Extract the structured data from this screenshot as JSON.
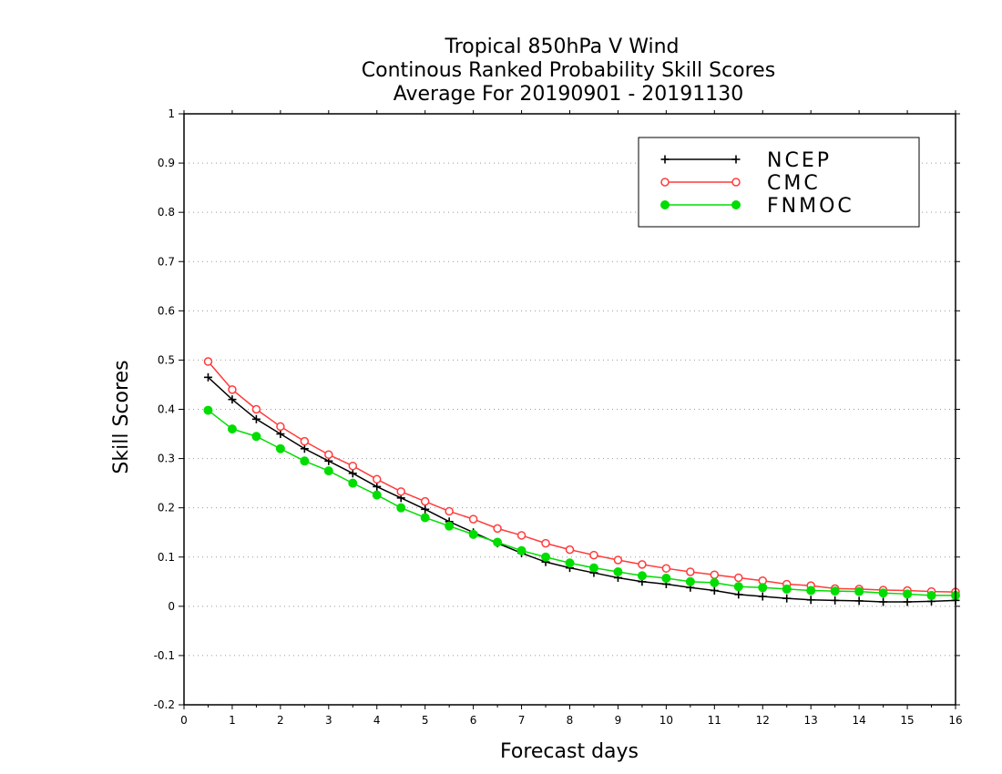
{
  "chart_data": {
    "type": "line",
    "title_lines": [
      "Tropical 850hPa V Wind",
      "Continous Ranked Probability Skill Scores",
      "Average For 20190901 - 20191130"
    ],
    "xlabel": "Forecast days",
    "ylabel": "Skill Scores",
    "xlim": [
      0,
      16
    ],
    "ylim": [
      -0.2,
      1
    ],
    "x_ticks": [
      "0",
      "1",
      "2",
      "3",
      "4",
      "5",
      "6",
      "7",
      "8",
      "9",
      "10",
      "11",
      "12",
      "13",
      "14",
      "15",
      "16"
    ],
    "y_ticks": [
      "-0.2",
      "-0.1",
      "0",
      "0.1",
      "0.2",
      "0.3",
      "0.4",
      "0.5",
      "0.6",
      "0.7",
      "0.8",
      "0.9",
      "1"
    ],
    "grid": "horizontal-dotted",
    "legend_position": "top-right",
    "x": [
      0.5,
      1,
      1.5,
      2,
      2.5,
      3,
      3.5,
      4,
      4.5,
      5,
      5.5,
      6,
      6.5,
      7,
      7.5,
      8,
      8.5,
      9,
      9.5,
      10,
      10.5,
      11,
      11.5,
      12,
      12.5,
      13,
      13.5,
      14,
      14.5,
      15,
      15.5,
      16
    ],
    "series": [
      {
        "name": "NCEP",
        "color": "#000000",
        "marker": "plus",
        "values": [
          0.465,
          0.42,
          0.38,
          0.35,
          0.32,
          0.295,
          0.27,
          0.243,
          0.22,
          0.197,
          0.172,
          0.15,
          0.128,
          0.108,
          0.09,
          0.078,
          0.068,
          0.058,
          0.05,
          0.045,
          0.038,
          0.032,
          0.024,
          0.02,
          0.016,
          0.013,
          0.012,
          0.011,
          0.009,
          0.009,
          0.01,
          0.012
        ]
      },
      {
        "name": "CMC",
        "color": "#ff3b3b",
        "marker": "open-circle",
        "values": [
          0.497,
          0.44,
          0.4,
          0.365,
          0.335,
          0.308,
          0.285,
          0.258,
          0.233,
          0.213,
          0.193,
          0.177,
          0.158,
          0.144,
          0.128,
          0.115,
          0.104,
          0.094,
          0.085,
          0.077,
          0.07,
          0.064,
          0.058,
          0.052,
          0.045,
          0.042,
          0.036,
          0.035,
          0.033,
          0.032,
          0.03,
          0.029
        ]
      },
      {
        "name": "FNMOC",
        "color": "#00dd00",
        "marker": "filled-circle",
        "values": [
          0.398,
          0.36,
          0.345,
          0.32,
          0.295,
          0.275,
          0.25,
          0.226,
          0.2,
          0.18,
          0.163,
          0.146,
          0.13,
          0.113,
          0.1,
          0.088,
          0.078,
          0.07,
          0.062,
          0.057,
          0.05,
          0.048,
          0.04,
          0.038,
          0.035,
          0.032,
          0.031,
          0.03,
          0.027,
          0.025,
          0.022,
          0.022
        ]
      }
    ]
  }
}
